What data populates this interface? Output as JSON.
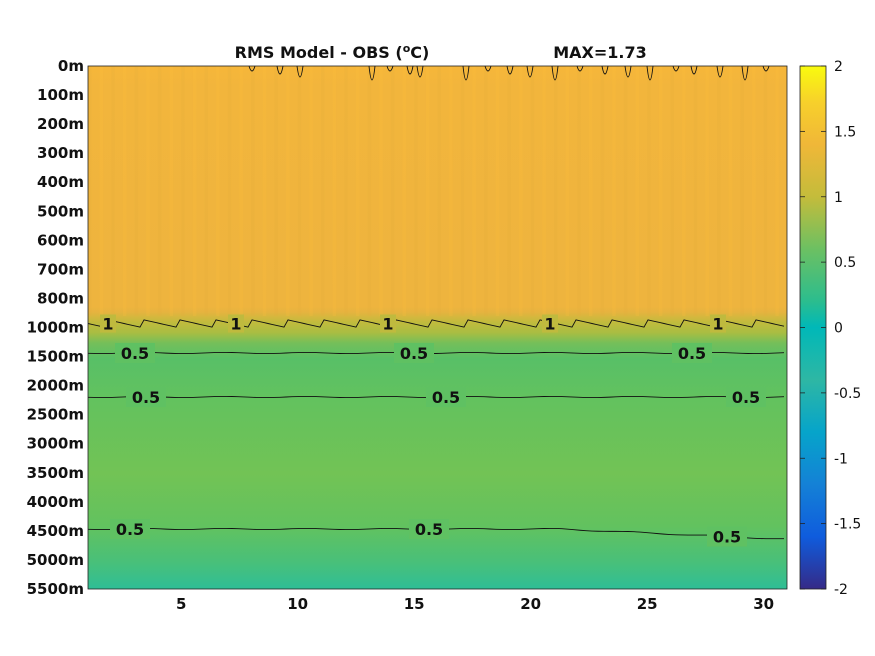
{
  "chart_data": {
    "type": "heatmap",
    "title": "RMS Model - OBS (",
    "title_unit_sup": "o",
    "title_unit_tail": "C)",
    "max_label": "MAX=1.73",
    "xlabel": "",
    "ylabel": "",
    "x_range": [
      1,
      31
    ],
    "x_ticks": [
      5,
      10,
      15,
      20,
      25,
      30
    ],
    "y_tick_labels": [
      "0m",
      "100m",
      "200m",
      "300m",
      "400m",
      "500m",
      "600m",
      "700m",
      "800m",
      "1000m",
      "1500m",
      "2000m",
      "2500m",
      "3000m",
      "3500m",
      "4000m",
      "4500m",
      "5000m",
      "5500m"
    ],
    "colorbar": {
      "range": [
        -2,
        2
      ],
      "ticks": [
        "2",
        "1.5",
        "1",
        "0.5",
        "0",
        "-0.5",
        "-1",
        "-1.5",
        "-2"
      ],
      "colormap": "parula"
    },
    "profile": {
      "description_rows": "RMS value by depth level index (0 = 0m ... 18 = 5500m), approximately uniform across x",
      "levels": [
        "0m",
        "100m",
        "200m",
        "300m",
        "400m",
        "500m",
        "600m",
        "700m",
        "800m",
        "1000m",
        "1500m",
        "2000m",
        "2500m",
        "3000m",
        "3500m",
        "4000m",
        "4500m",
        "5000m",
        "5500m"
      ],
      "values": [
        1.25,
        1.3,
        1.3,
        1.28,
        1.27,
        1.27,
        1.28,
        1.28,
        1.2,
        0.95,
        0.5,
        0.62,
        0.65,
        0.68,
        0.7,
        0.67,
        0.6,
        0.5,
        0.4
      ]
    },
    "contours": [
      {
        "level": "1",
        "labels": [
          "1",
          "1",
          "1",
          "1",
          "1"
        ]
      },
      {
        "level": "0.5",
        "labels": [
          "0.5",
          "0.5",
          "0.5"
        ]
      },
      {
        "level": "0.5",
        "labels": [
          "0.5",
          "0.5",
          "0.5"
        ]
      },
      {
        "level": "0.5",
        "labels": [
          "0.5",
          "0.5",
          "0.5"
        ]
      }
    ]
  }
}
